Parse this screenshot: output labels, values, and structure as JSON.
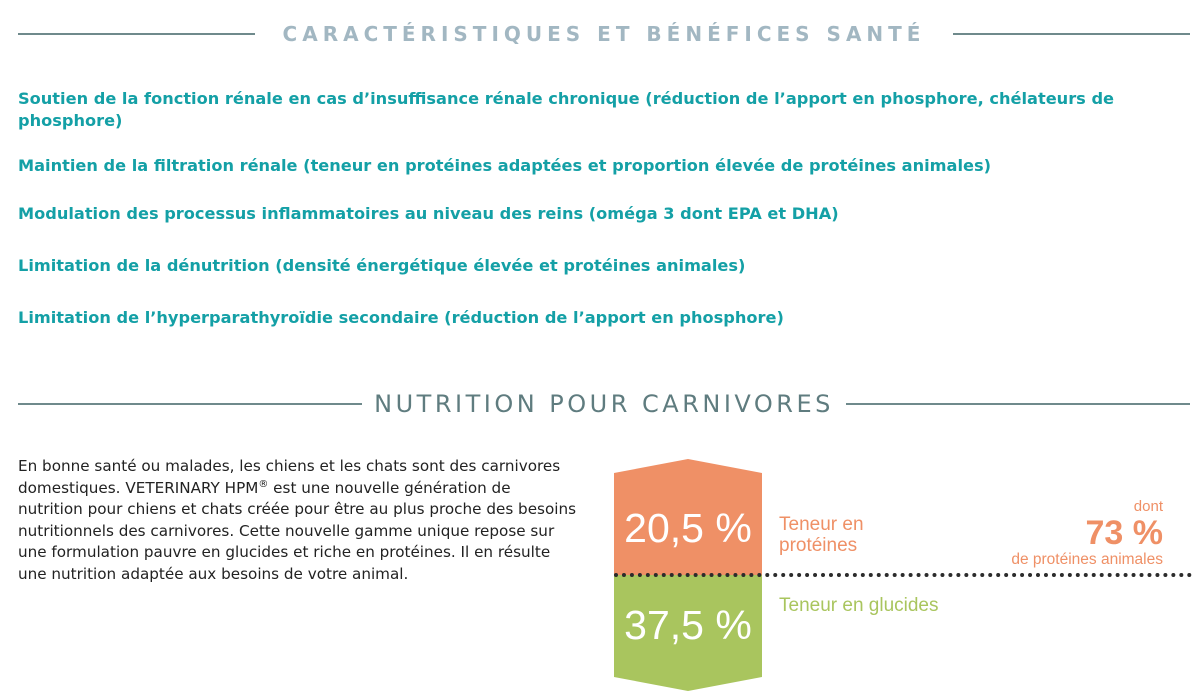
{
  "section1": {
    "title": "CARACTÉRISTIQUES ET BÉNÉFICES SANTÉ",
    "benefits": [
      "Soutien de la fonction rénale en cas d’insuffisance rénale chronique (réduction de l’apport en phosphore, chélateurs de phosphore)",
      "Maintien de la filtration rénale (teneur en protéines adaptées et proportion élevée de protéines animales)",
      "Modulation des processus inflammatoires au niveau des reins (oméga 3 dont EPA et DHA)",
      "Limitation de la dénutrition (densité énergétique élevée et protéines animales)",
      "Limitation de l’hyperparathyroïdie secondaire (réduction de l’apport en phosphore)"
    ]
  },
  "section2": {
    "title": "NUTRITION POUR CARNIVORES",
    "intro_before": "En bonne santé ou malades, les chiens et les chats sont des carnivores domestiques. VETERINARY HPM",
    "intro_sup": "®",
    "intro_after": " est une nouvelle génération de nutrition pour chiens et chats créée pour être au plus proche des besoins nutritionnels des carnivores. Cette nouvelle gamme unique repose sur une formulation pauvre en glucides et riche en protéines. Il en résulte une nutrition adaptée aux besoins de votre animal."
  },
  "nutrition": {
    "protein_value": "20,5 %",
    "protein_label_line1": "Teneur en",
    "protein_label_line2": "protéines",
    "carb_value": "37,5 %",
    "carb_label": "Teneur en glucides",
    "animal_prefix": "dont",
    "animal_value": "73 %",
    "animal_label": "de protéines animales"
  },
  "colors": {
    "teal_text": "#14a0a6",
    "protein_orange": "#ef9066",
    "carb_green": "#a9c55e",
    "heading_gray": "#5f7c7f"
  }
}
